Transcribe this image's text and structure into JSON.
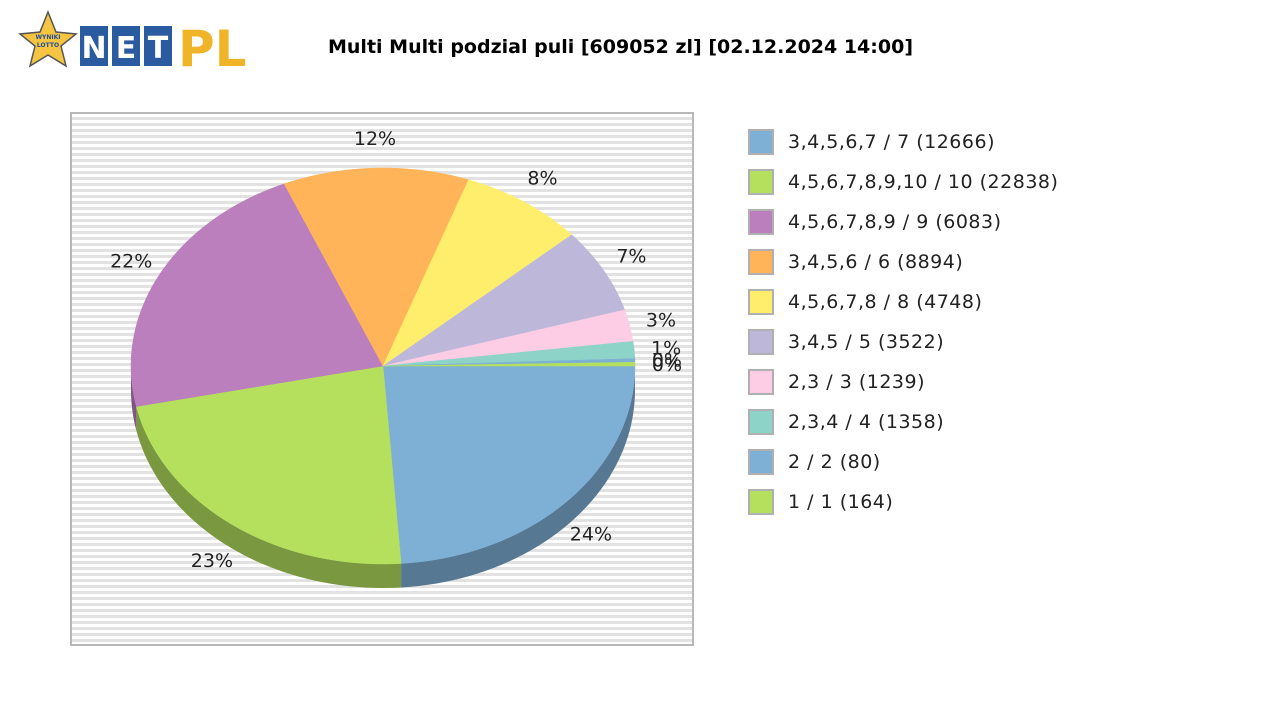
{
  "logo": {
    "badge_text_1": "WYNIKI",
    "badge_text_2": "LOTTO",
    "net_letters": [
      "N",
      "E",
      "T"
    ],
    "pl_text": "PL"
  },
  "chart_data": {
    "type": "pie",
    "title": "Multi Multi podzial puli [609052 zl] [02.12.2024 14:00]",
    "slices": [
      {
        "label": "3,4,5,6,7 / 7 (12666)",
        "percent_label": "24%",
        "value": 24,
        "color": "#7eb0d6"
      },
      {
        "label": "4,5,6,7,8,9,10 / 10 (22838)",
        "percent_label": "23%",
        "value": 23,
        "color": "#b4e05e"
      },
      {
        "label": "4,5,6,7,8,9 / 9 (6083)",
        "percent_label": "22%",
        "value": 22,
        "color": "#bb7fbe"
      },
      {
        "label": "3,4,5,6 / 6 (8894)",
        "percent_label": "12%",
        "value": 12,
        "color": "#ffb45a"
      },
      {
        "label": "4,5,6,7,8 / 8 (4748)",
        "percent_label": "8%",
        "value": 8,
        "color": "#ffee6b"
      },
      {
        "label": "3,4,5 / 5 (3522)",
        "percent_label": "7%",
        "value": 7,
        "color": "#bdb8da"
      },
      {
        "label": "2,3 / 3 (1239)",
        "percent_label": "3%",
        "value": 2.6,
        "color": "#fccde5"
      },
      {
        "label": "2,3,4 / 4 (1358)",
        "percent_label": "1%",
        "value": 1.4,
        "color": "#8dd3c7"
      },
      {
        "label": "2 / 2 (80)",
        "percent_label": "0%",
        "value": 0.3,
        "color": "#7eb0d6"
      },
      {
        "label": "1 / 1 (164)",
        "percent_label": "0%",
        "value": 0.3,
        "color": "#b4e05e"
      }
    ],
    "legend_position": "right",
    "background": "striped"
  }
}
